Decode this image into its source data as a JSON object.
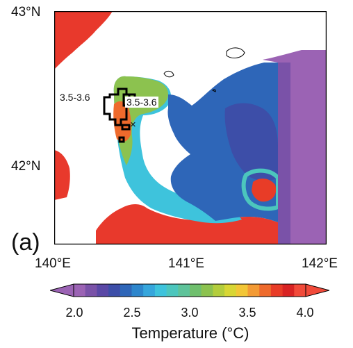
{
  "panel_label": "(a)",
  "lat_labels": [
    "43°N",
    "42°N"
  ],
  "lon_labels": [
    "140°E",
    "141°E",
    "142°E"
  ],
  "annotations": [
    "3.5-3.6",
    "3.5-3.6"
  ],
  "marker_symbol": "×",
  "colorbar": {
    "title": "Temperature (°C)",
    "ticks": [
      "2.0",
      "2.5",
      "3.0",
      "3.5",
      "4.0"
    ],
    "range": [
      2.0,
      4.0
    ],
    "colors": [
      "#9b63b4",
      "#7a52a8",
      "#5a48a6",
      "#3d4ea8",
      "#2e66b8",
      "#2d86cc",
      "#36a6dc",
      "#3ec3dc",
      "#4cc6bd",
      "#5ec39a",
      "#6fbf6d",
      "#8cc24f",
      "#b3cd3c",
      "#d8d634",
      "#f2c636",
      "#f39a34",
      "#ee6a2c",
      "#e83c27",
      "#d82323",
      "#f14a3a"
    ],
    "land_color": "#e8392c",
    "extend": "both"
  }
}
